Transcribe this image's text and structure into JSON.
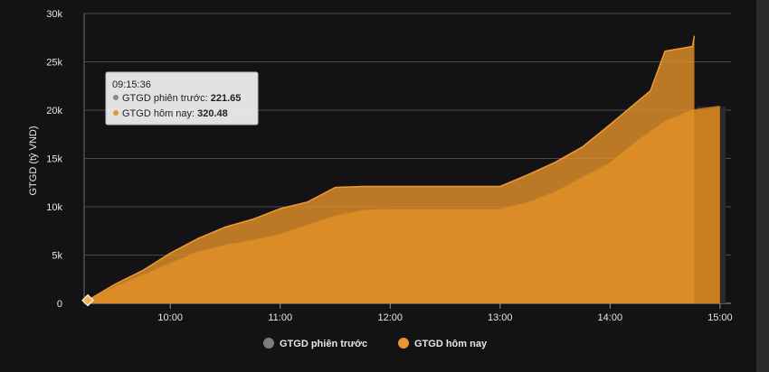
{
  "chart_data": {
    "type": "area",
    "ylabel": "GTGD (tỷ VND)",
    "ylim": [
      0,
      30000
    ],
    "y_ticks": [
      0,
      5000,
      10000,
      15000,
      20000,
      25000,
      30000
    ],
    "y_tick_labels": [
      "0",
      "5k",
      "10k",
      "15k",
      "20k",
      "25k",
      "30k"
    ],
    "xlim": [
      "09:15",
      "15:00"
    ],
    "x_ticks": [
      "10:00",
      "11:00",
      "12:00",
      "13:00",
      "14:00",
      "15:00"
    ],
    "grid": true,
    "legend_position": "bottom",
    "series": [
      {
        "name": "GTGD phiên trước",
        "color": "#d88a24",
        "points": [
          [
            "09:15",
            222
          ],
          [
            "09:30",
            1700
          ],
          [
            "09:45",
            2900
          ],
          [
            "10:00",
            4100
          ],
          [
            "10:15",
            5300
          ],
          [
            "10:30",
            6000
          ],
          [
            "10:45",
            6500
          ],
          [
            "11:00",
            7100
          ],
          [
            "11:15",
            8100
          ],
          [
            "11:30",
            9000
          ],
          [
            "11:45",
            9600
          ],
          [
            "12:00",
            9700
          ],
          [
            "12:30",
            9700
          ],
          [
            "13:00",
            9700
          ],
          [
            "13:15",
            10400
          ],
          [
            "13:30",
            11500
          ],
          [
            "13:45",
            13000
          ],
          [
            "14:00",
            14500
          ],
          [
            "14:15",
            16800
          ],
          [
            "14:30",
            18800
          ],
          [
            "14:45",
            20000
          ],
          [
            "15:00",
            20400
          ]
        ]
      },
      {
        "name": "GTGD hôm nay",
        "color": "#e8962f",
        "points": [
          [
            "09:15",
            320
          ],
          [
            "09:30",
            2000
          ],
          [
            "09:45",
            3400
          ],
          [
            "10:00",
            5200
          ],
          [
            "10:15",
            6700
          ],
          [
            "10:30",
            7900
          ],
          [
            "10:45",
            8700
          ],
          [
            "11:00",
            9800
          ],
          [
            "11:15",
            10500
          ],
          [
            "11:30",
            12000
          ],
          [
            "11:45",
            12100
          ],
          [
            "12:00",
            12100
          ],
          [
            "12:30",
            12100
          ],
          [
            "13:00",
            12100
          ],
          [
            "13:15",
            13300
          ],
          [
            "13:30",
            14600
          ],
          [
            "13:45",
            16200
          ],
          [
            "14:00",
            18500
          ],
          [
            "14:15",
            20900
          ],
          [
            "14:22",
            22000
          ],
          [
            "14:30",
            26100
          ],
          [
            "14:45",
            26600
          ],
          [
            "14:46",
            27700
          ]
        ]
      }
    ],
    "tooltip": {
      "time": "09:15:36",
      "rows": [
        {
          "label": "GTGD phiên trước:",
          "value": "221.65",
          "color": "#8a8a8a"
        },
        {
          "label": "GTGD hôm nay:",
          "value": "320.48",
          "color": "#e8962f"
        }
      ]
    },
    "legend": [
      {
        "label": "GTGD phiên trước",
        "color": "#7d7d7d"
      },
      {
        "label": "GTGD hôm nay",
        "color": "#e8962f"
      }
    ]
  }
}
